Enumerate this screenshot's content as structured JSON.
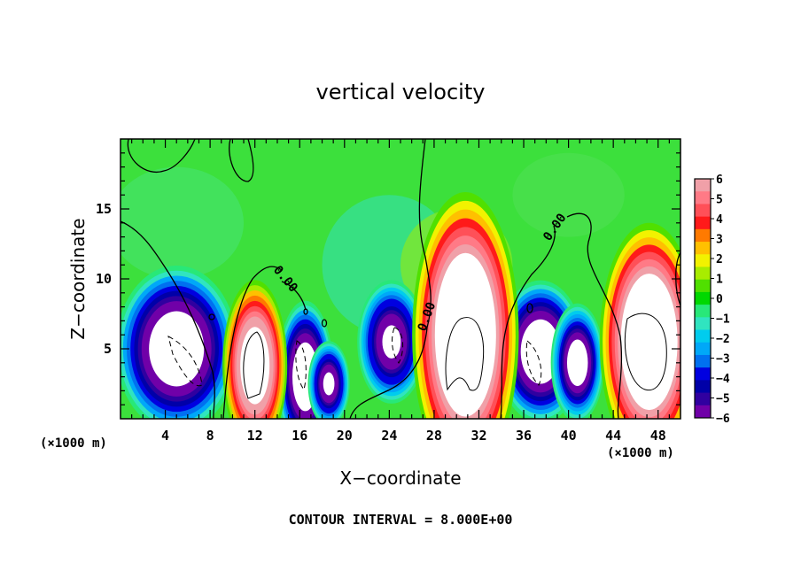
{
  "chart_data": {
    "type": "heatmap",
    "title": "vertical velocity",
    "xlabel": "X−coordinate",
    "ylabel": "Z−coordinate",
    "x_unit": "(×1000 m)",
    "xlim": [
      0,
      50
    ],
    "ylim": [
      0,
      20
    ],
    "x_ticks": [
      4,
      8,
      12,
      16,
      20,
      24,
      28,
      32,
      36,
      40,
      44,
      48
    ],
    "x_tick_labels": [
      "4",
      "8",
      "12",
      "16",
      "20",
      "24",
      "28",
      "32",
      "36",
      "40",
      "44",
      "48"
    ],
    "y_ticks": [
      5,
      10,
      15
    ],
    "y_tick_labels": [
      "5",
      "10",
      "15"
    ],
    "contour_interval_text": "CONTOUR INTERVAL = 8.000E+00",
    "contour_labels": [
      "0.00",
      "0.00",
      "0.00"
    ],
    "colorbar": {
      "range": [
        -6,
        6
      ],
      "labels": [
        "6",
        "5",
        "4",
        "3",
        "2",
        "1",
        "0",
        "−1",
        "−2",
        "−3",
        "−4",
        "−5",
        "−6"
      ],
      "colors": [
        "#f0a0a8",
        "#ff7a86",
        "#ff5058",
        "#ff1a1a",
        "#ff7a00",
        "#ffc000",
        "#f2f200",
        "#a8ec00",
        "#50e000",
        "#00d800",
        "#28e878",
        "#30e4c0",
        "#00ccee",
        "#00a8f8",
        "#0070f0",
        "#0000e0",
        "#0000a8",
        "#3000a0",
        "#7000a8"
      ]
    },
    "features": [
      {
        "kind": "updraft",
        "x": 12,
        "z": 3.8,
        "rx": 1.7,
        "rz": 3.6,
        "w": 9
      },
      {
        "kind": "updraft",
        "x": 30.8,
        "z": 6.0,
        "rx": 2.8,
        "rz": 6.0,
        "w": 11
      },
      {
        "kind": "updraft",
        "x": 47.2,
        "z": 5.5,
        "rx": 2.6,
        "rz": 5.0,
        "w": 11
      },
      {
        "kind": "downdraft",
        "x": 5.0,
        "z": 5.0,
        "rx": 3.2,
        "rz": 3.5,
        "w": -9
      },
      {
        "kind": "downdraft",
        "x": 16.5,
        "z": 3.0,
        "rx": 1.5,
        "rz": 3.2,
        "w": -9
      },
      {
        "kind": "downdraft",
        "x": 18.6,
        "z": 2.5,
        "rx": 1.1,
        "rz": 1.8,
        "w": -7
      },
      {
        "kind": "downdraft",
        "x": 24.2,
        "z": 5.5,
        "rx": 1.8,
        "rz": 2.6,
        "w": -7
      },
      {
        "kind": "downdraft",
        "x": 37.5,
        "z": 4.8,
        "rx": 2.3,
        "rz": 3.0,
        "w": -9
      },
      {
        "kind": "downdraft",
        "x": 40.8,
        "z": 4.0,
        "rx": 1.4,
        "rz": 2.5,
        "w": -8
      }
    ]
  }
}
